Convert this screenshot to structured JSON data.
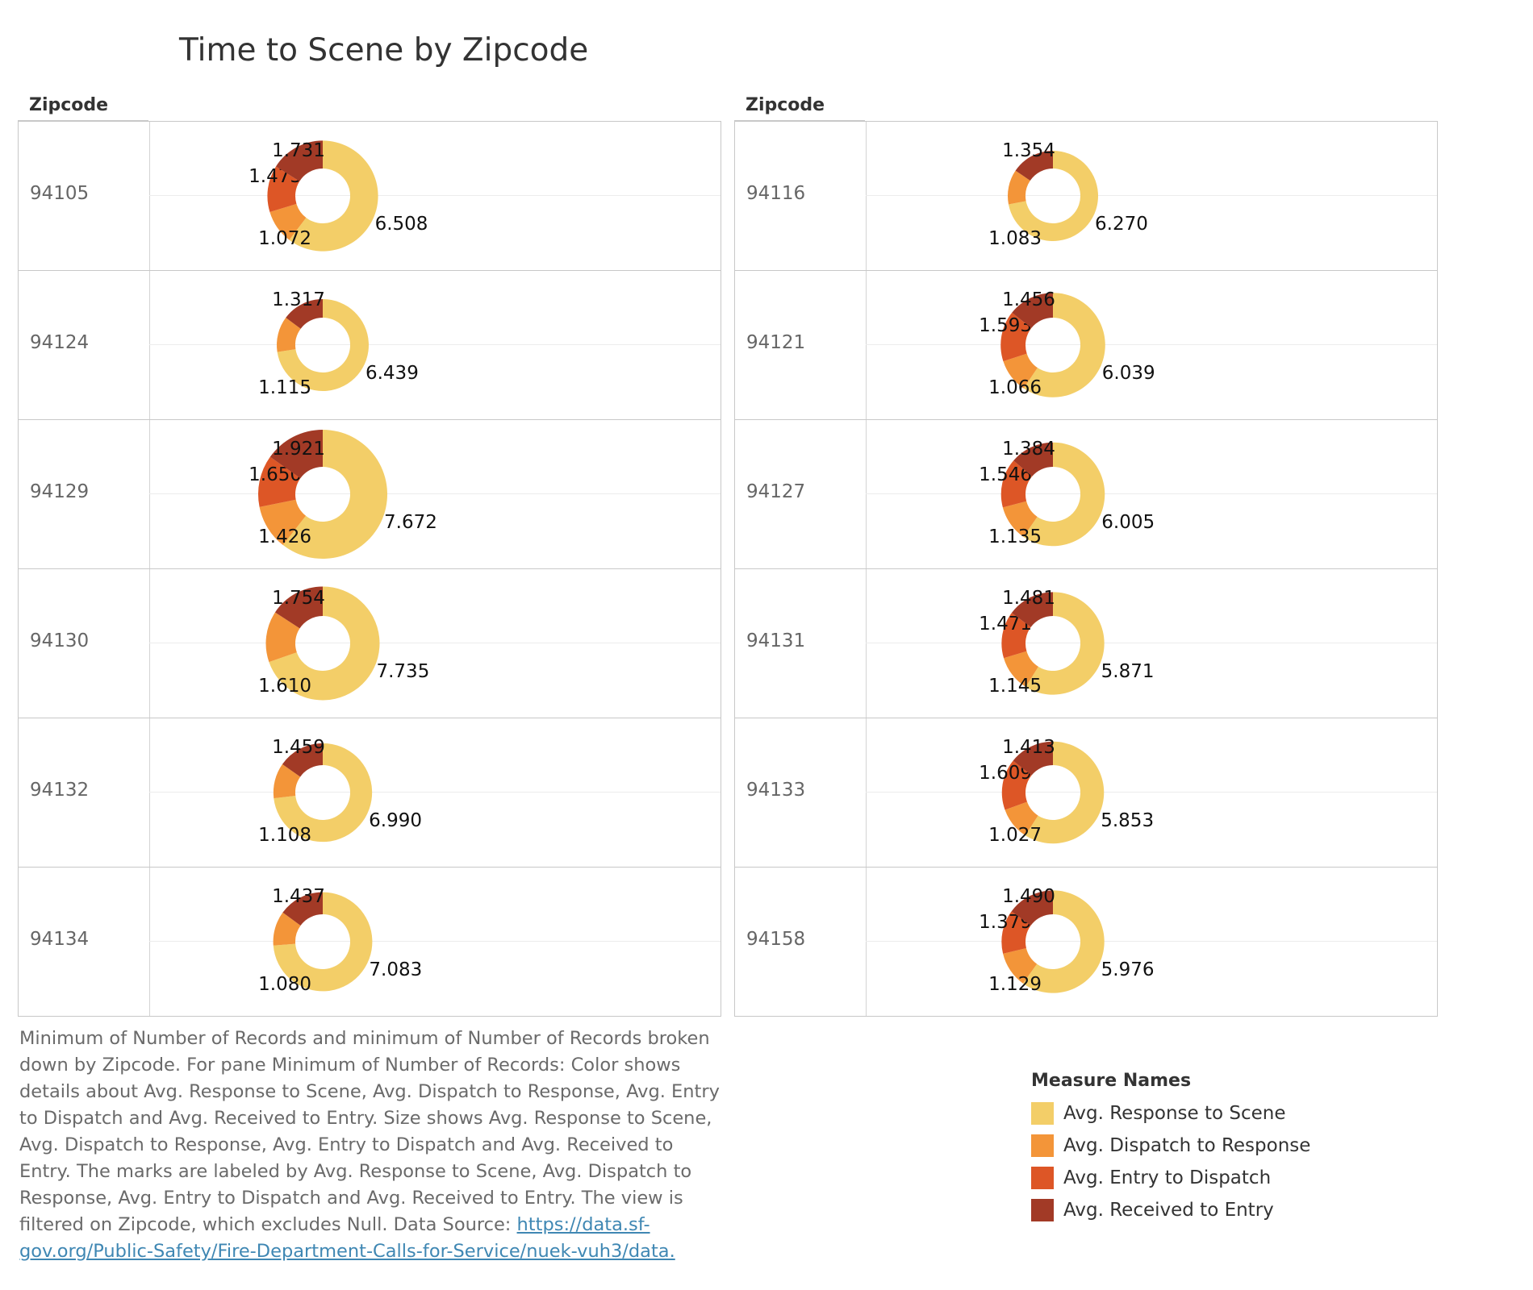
{
  "title": "Time to Scene by Zipcode",
  "column_header": "Zipcode",
  "legend": {
    "title": "Measure Names",
    "items": [
      {
        "label": "Avg. Response to Scene",
        "color": "#F3CE68"
      },
      {
        "label": "Avg. Dispatch to Response",
        "color": "#F39539"
      },
      {
        "label": "Avg. Entry to Dispatch",
        "color": "#DD5626"
      },
      {
        "label": "Avg. Received to Entry",
        "color": "#A23A26"
      }
    ]
  },
  "note": {
    "text": "Minimum of Number of Records and minimum of Number of Records broken down by Zipcode.  For pane Minimum of Number of Records:  Color shows details about Avg. Response to Scene, Avg. Dispatch to Response, Avg. Entry to Dispatch and Avg. Received to Entry.  Size shows Avg. Response to Scene, Avg. Dispatch to Response, Avg. Entry to Dispatch and Avg. Received to Entry.  The marks are labeled by Avg. Response to Scene, Avg. Dispatch to Response, Avg. Entry to Dispatch and Avg. Received to Entry. The view is filtered on Zipcode, which excludes Null. Data Source: ",
    "link": "https://data.sf-gov.org/Public-Safety/Fire-Department-Calls-for-Service/nuek-vuh3/data."
  },
  "chart_data": {
    "type": "pie",
    "title": "Time to Scene by Zipcode",
    "series_names": [
      "Avg. Response to Scene",
      "Avg. Dispatch to Response",
      "Avg. Entry to Dispatch",
      "Avg. Received to Entry"
    ],
    "panels": [
      {
        "rows": [
          {
            "zipcode": "94105",
            "values": [
              "6.508",
              "1.072",
              "1.473",
              "1.731"
            ]
          },
          {
            "zipcode": "94124",
            "values": [
              "6.439",
              "1.115",
              "",
              "1.317"
            ]
          },
          {
            "zipcode": "94129",
            "values": [
              "7.672",
              "1.426",
              "1.650",
              "1.921"
            ]
          },
          {
            "zipcode": "94130",
            "values": [
              "7.735",
              "1.610",
              "",
              "1.754"
            ]
          },
          {
            "zipcode": "94132",
            "values": [
              "6.990",
              "1.108",
              "",
              "1.459"
            ]
          },
          {
            "zipcode": "94134",
            "values": [
              "7.083",
              "1.080",
              "",
              "1.437"
            ]
          }
        ]
      },
      {
        "rows": [
          {
            "zipcode": "94116",
            "values": [
              "6.270",
              "1.083",
              "",
              "1.354"
            ]
          },
          {
            "zipcode": "94121",
            "values": [
              "6.039",
              "1.066",
              "1.593",
              "1.456"
            ]
          },
          {
            "zipcode": "94127",
            "values": [
              "6.005",
              "1.135",
              "1.546",
              "1.384"
            ]
          },
          {
            "zipcode": "94131",
            "values": [
              "5.871",
              "1.145",
              "1.471",
              "1.481"
            ]
          },
          {
            "zipcode": "94133",
            "values": [
              "5.853",
              "1.027",
              "1.609",
              "1.413"
            ]
          },
          {
            "zipcode": "94158",
            "values": [
              "5.976",
              "1.129",
              "1.379",
              "1.490"
            ]
          }
        ]
      }
    ]
  }
}
